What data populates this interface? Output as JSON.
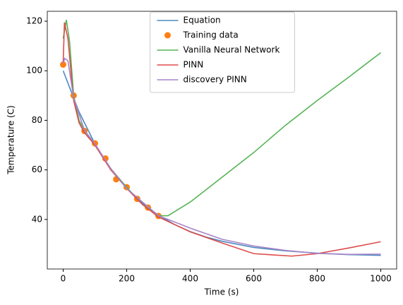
{
  "chart_data": {
    "type": "line",
    "xlabel": "Time (s)",
    "ylabel": "Temperature (C)",
    "xlim": [
      -50,
      1050
    ],
    "ylim": [
      20,
      124
    ],
    "xticks": [
      0,
      200,
      400,
      600,
      800,
      1000
    ],
    "yticks": [
      40,
      60,
      80,
      100,
      120
    ],
    "grid": false,
    "legend": "upper center",
    "series": [
      {
        "name": "Equation",
        "color": "#4a8ac0",
        "mode": "line",
        "x": [
          0,
          50,
          100,
          150,
          200,
          250,
          300,
          350,
          400,
          450,
          500,
          600,
          700,
          800,
          900,
          1000
        ],
        "values": [
          100,
          83.4,
          70.5,
          60.4,
          52.6,
          46.5,
          41.7,
          38.0,
          35.1,
          32.9,
          31.2,
          28.7,
          27.3,
          26.4,
          25.8,
          25.5
        ]
      },
      {
        "name": "Training data",
        "color": "#ff7f0e",
        "mode": "markers",
        "x": [
          0,
          33,
          67,
          100,
          133,
          167,
          200,
          233,
          267,
          300
        ],
        "values": [
          102.5,
          90,
          75.7,
          70.7,
          64.6,
          56.2,
          53,
          48.3,
          44.8,
          41.4
        ]
      },
      {
        "name": "Vanilla Neural Network",
        "color": "#55b355",
        "mode": "line",
        "x": [
          0,
          10,
          20,
          33,
          50,
          67,
          100,
          150,
          200,
          250,
          300,
          330,
          400,
          500,
          600,
          700,
          800,
          900,
          1000
        ],
        "values": [
          113,
          120.5,
          112,
          90,
          80,
          76,
          70,
          60.5,
          53,
          46,
          41.5,
          41.5,
          47,
          57,
          67,
          78,
          88,
          97.5,
          107.3
        ]
      },
      {
        "name": "PINN",
        "color": "#dd4c4b",
        "mode": "line",
        "x": [
          0,
          4,
          15,
          33,
          50,
          67,
          100,
          150,
          200,
          250,
          300,
          400,
          500,
          600,
          720,
          800,
          900,
          1000
        ],
        "values": [
          103,
          119.5,
          113,
          88,
          79,
          75,
          70,
          60,
          52.5,
          46,
          41,
          35,
          30.5,
          26.2,
          25.2,
          26.2,
          28.5,
          31
        ]
      },
      {
        "name": "discovery PINN",
        "color": "#a784c8",
        "mode": "line",
        "x": [
          0,
          5,
          15,
          33,
          67,
          100,
          150,
          200,
          300,
          400,
          500,
          600,
          700,
          800,
          900,
          1000
        ],
        "values": [
          103,
          105,
          104,
          89,
          76,
          70.5,
          60.5,
          52.5,
          41.5,
          36.5,
          32,
          29.3,
          27.5,
          26.3,
          25.9,
          26
        ]
      }
    ]
  }
}
